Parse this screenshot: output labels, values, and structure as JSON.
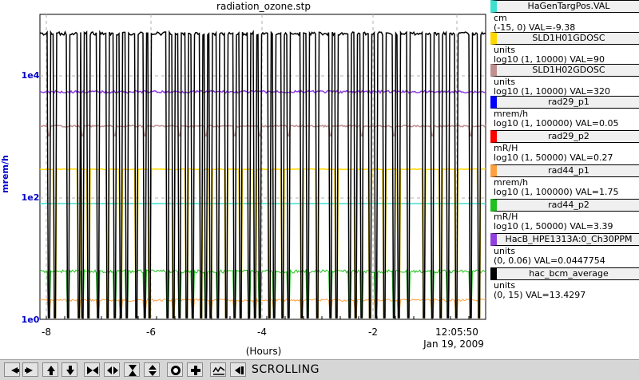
{
  "plot": {
    "title": "radiation_ozone.stp",
    "y_label": "mrem/h",
    "y_ticks": [
      "1e4",
      "1e2",
      "1e0"
    ],
    "x_ticks": [
      "-8",
      "-6",
      "-4",
      "-2"
    ],
    "x_label": "(Hours)",
    "time_label": "12:05:50",
    "date_label": "Jan 19, 2009",
    "y_axis_color": "#0000cc"
  },
  "legend": [
    {
      "name": "HaGenTargPos.VAL",
      "unit": "cm",
      "scale": "(-15, 0) VAL=-9.38",
      "color": "#40e0d0"
    },
    {
      "name": "SLD1H01GDOSC",
      "unit": "units",
      "scale": "log10 (1, 10000) VAL=90",
      "color": "#ffd700"
    },
    {
      "name": "SLD1H02GDOSC",
      "unit": "units",
      "scale": "log10 (1, 10000) VAL=320",
      "color": "#c09090"
    },
    {
      "name": "rad29_p1",
      "unit": "mrem/h",
      "scale": "log10 (1, 100000) VAL=0.05",
      "color": "#0000ff"
    },
    {
      "name": "rad29_p2",
      "unit": "mR/H",
      "scale": "log10 (1, 50000) VAL=0.27",
      "color": "#ff0000"
    },
    {
      "name": "rad44_p1",
      "unit": "mrem/h",
      "scale": "log10 (1, 100000) VAL=1.75",
      "color": "#ffa040"
    },
    {
      "name": "rad44_p2",
      "unit": "mR/H",
      "scale": "log10 (1, 50000) VAL=3.39",
      "color": "#20c020"
    },
    {
      "name": "HacB_HPE1313A:0_Ch30PPM",
      "unit": "units",
      "scale": "(0, 0.06) VAL=0.0447754",
      "color": "#9040e0"
    },
    {
      "name": "hac_bcm_average",
      "unit": "units",
      "scale": "(0, 15) VAL=13.4297",
      "color": "#000000"
    }
  ],
  "toolbar": {
    "status": "SCROLLING",
    "buttons": [
      "left-arrow-icon",
      "right-arrow-icon",
      "up-arrow-icon",
      "down-arrow-icon",
      "zoom-in-x-icon",
      "zoom-out-x-icon",
      "zoom-in-y-icon",
      "zoom-out-y-icon",
      "record-icon",
      "crosshair-icon",
      "stripchart-icon",
      "scroll-icon"
    ]
  }
}
